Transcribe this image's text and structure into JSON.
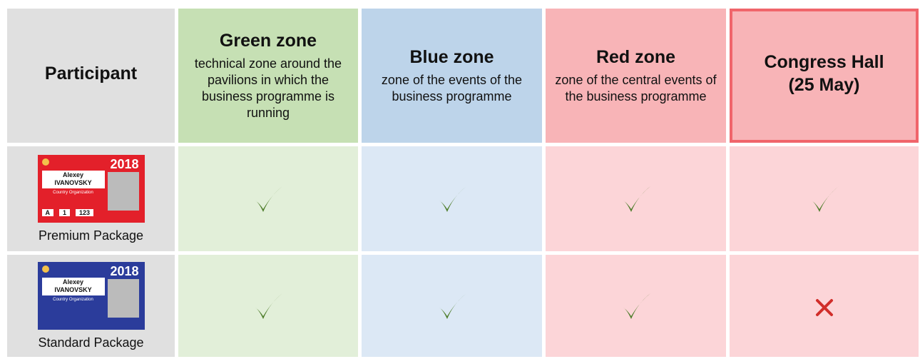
{
  "header": {
    "participant": "Participant",
    "zones": [
      {
        "title": "Green zone",
        "description": "technical zone around the pavilions in which the business programme is running"
      },
      {
        "title": "Blue zone",
        "description": "zone of the events of the business programme"
      },
      {
        "title": "Red zone",
        "description": "zone of the central events of the business programme"
      },
      {
        "title": "Congress Hall (25 May)"
      }
    ]
  },
  "rows": [
    {
      "package": "Premium Package",
      "badge": {
        "year": "2018",
        "first_name": "Alexey",
        "last_name": "IVANOVSKY",
        "organization": "Country Organization",
        "seat": [
          "A",
          "1",
          "123"
        ]
      },
      "access": [
        true,
        true,
        true,
        true
      ]
    },
    {
      "package": "Standard Package",
      "badge": {
        "year": "2018",
        "first_name": "Alexey",
        "last_name": "IVANOVSKY",
        "organization": "Country Organization"
      },
      "access": [
        true,
        true,
        true,
        false
      ]
    }
  ]
}
